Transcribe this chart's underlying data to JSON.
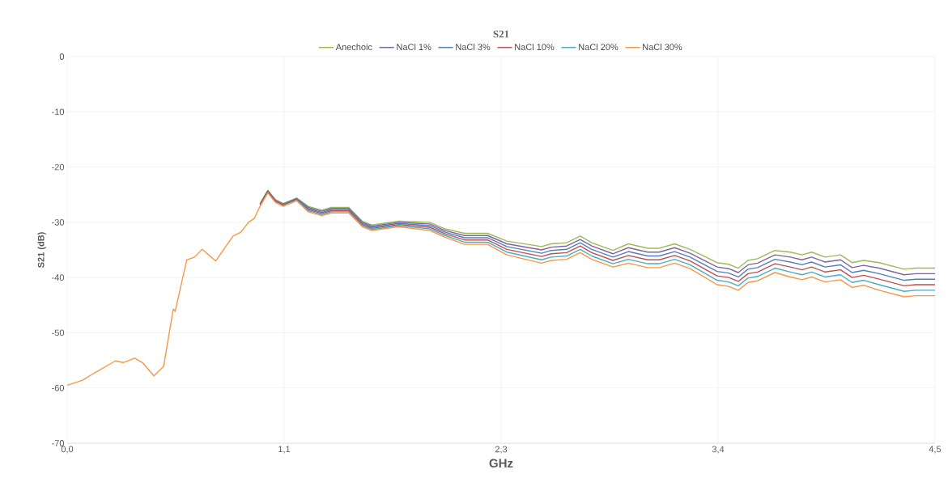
{
  "chart_data": {
    "type": "line",
    "title": "S21",
    "xlabel": "GHz",
    "ylabel": "S21 (dB)",
    "x": [
      0,
      0.08,
      0.14,
      0.25,
      0.29,
      0.35,
      0.39,
      0.45,
      0.5,
      0.55,
      0.56,
      0.62,
      0.66,
      0.7,
      0.77,
      0.86,
      0.9,
      0.94,
      0.97,
      1.0,
      1.04,
      1.08,
      1.12,
      1.19,
      1.25,
      1.32,
      1.37,
      1.46,
      1.53,
      1.58,
      1.72,
      1.88,
      1.96,
      2.06,
      2.18,
      2.28,
      2.46,
      2.51,
      2.59,
      2.66,
      2.72,
      2.83,
      2.91,
      3.01,
      3.07,
      3.15,
      3.23,
      3.37,
      3.43,
      3.48,
      3.53,
      3.58,
      3.67,
      3.75,
      3.81,
      3.86,
      3.93,
      4.01,
      4.07,
      4.13,
      4.21,
      4.34,
      4.4,
      4.45,
      4.5
    ],
    "series": [
      {
        "name": "Anechoic",
        "color": "#9bbb59",
        "values": [
          null,
          null,
          null,
          null,
          null,
          null,
          null,
          null,
          null,
          null,
          null,
          null,
          null,
          null,
          null,
          null,
          null,
          null,
          null,
          -26.6,
          -24.2,
          -25.9,
          -26.6,
          -25.6,
          -27.1,
          -27.8,
          -27.3,
          -27.3,
          -29.8,
          -30.5,
          -29.8,
          -30.0,
          -31.2,
          -32.0,
          -32.0,
          -33.4,
          -34.4,
          -33.9,
          -33.7,
          -32.5,
          -33.7,
          -35.1,
          -33.9,
          -34.7,
          -34.7,
          -33.9,
          -34.9,
          -37.3,
          -37.6,
          -38.3,
          -36.9,
          -36.6,
          -35.1,
          -35.4,
          -35.9,
          -35.4,
          -36.3,
          -35.9,
          -37.3,
          -36.9,
          -37.3,
          -38.5,
          -38.3,
          -38.3,
          -38.3
        ]
      },
      {
        "name": "NaCl 1%",
        "color": "#8064a2",
        "values": [
          null,
          null,
          null,
          null,
          null,
          null,
          null,
          null,
          null,
          null,
          null,
          null,
          null,
          null,
          null,
          null,
          null,
          null,
          null,
          -26.7,
          -24.3,
          -26.0,
          -26.7,
          -25.7,
          -27.3,
          -28.0,
          -27.5,
          -27.5,
          -30.0,
          -30.7,
          -30.0,
          -30.3,
          -31.5,
          -32.4,
          -32.4,
          -33.9,
          -35.0,
          -34.5,
          -34.3,
          -33.1,
          -34.3,
          -35.7,
          -34.6,
          -35.4,
          -35.4,
          -34.6,
          -35.6,
          -38.1,
          -38.4,
          -39.1,
          -37.7,
          -37.4,
          -35.9,
          -36.3,
          -36.8,
          -36.3,
          -37.2,
          -36.8,
          -38.2,
          -37.8,
          -38.3,
          -39.5,
          -39.3,
          -39.3,
          -39.3
        ]
      },
      {
        "name": "NaCl 3%",
        "color": "#4f81bd",
        "values": [
          null,
          null,
          null,
          null,
          null,
          null,
          null,
          null,
          null,
          null,
          null,
          null,
          null,
          null,
          null,
          null,
          null,
          null,
          null,
          -26.8,
          -24.4,
          -26.1,
          -26.8,
          -25.8,
          -27.5,
          -28.2,
          -27.7,
          -27.7,
          -30.2,
          -30.9,
          -30.2,
          -30.6,
          -31.8,
          -32.8,
          -32.8,
          -34.4,
          -35.6,
          -35.1,
          -34.9,
          -33.7,
          -34.9,
          -36.3,
          -35.3,
          -36.1,
          -36.1,
          -35.3,
          -36.3,
          -38.9,
          -39.2,
          -39.9,
          -38.5,
          -38.2,
          -36.7,
          -37.2,
          -37.7,
          -37.2,
          -38.1,
          -37.7,
          -39.1,
          -38.7,
          -39.3,
          -40.5,
          -40.3,
          -40.3,
          -40.3
        ]
      },
      {
        "name": "NaCl 10%",
        "color": "#c0504d",
        "values": [
          null,
          null,
          null,
          null,
          null,
          null,
          null,
          null,
          null,
          null,
          null,
          null,
          null,
          null,
          null,
          null,
          null,
          null,
          null,
          -26.9,
          -24.5,
          -26.2,
          -26.9,
          -25.9,
          -27.7,
          -28.4,
          -27.9,
          -27.9,
          -30.4,
          -31.1,
          -30.4,
          -30.9,
          -32.1,
          -33.2,
          -33.2,
          -34.9,
          -36.2,
          -35.7,
          -35.5,
          -34.3,
          -35.5,
          -36.9,
          -36.0,
          -36.8,
          -36.8,
          -36.0,
          -37.0,
          -39.7,
          -40.0,
          -40.7,
          -39.3,
          -39.0,
          -37.5,
          -38.1,
          -38.6,
          -38.1,
          -39.0,
          -38.6,
          -40.0,
          -39.6,
          -40.3,
          -41.5,
          -41.3,
          -41.3,
          -41.3
        ]
      },
      {
        "name": "NaCl 20%",
        "color": "#4bacc6",
        "values": [
          null,
          null,
          null,
          null,
          null,
          null,
          null,
          null,
          null,
          null,
          null,
          null,
          null,
          null,
          null,
          null,
          null,
          null,
          null,
          null,
          null,
          null,
          -27.0,
          -26.0,
          -27.9,
          -28.6,
          -28.1,
          -28.1,
          -30.6,
          -31.3,
          -30.6,
          -31.2,
          -32.4,
          -33.6,
          -33.6,
          -35.4,
          -36.8,
          -36.3,
          -36.1,
          -34.9,
          -36.1,
          -37.5,
          -36.7,
          -37.5,
          -37.5,
          -36.7,
          -37.7,
          -40.5,
          -40.8,
          -41.5,
          -40.1,
          -39.8,
          -38.3,
          -39.0,
          -39.5,
          -39.0,
          -39.9,
          -39.5,
          -40.9,
          -40.5,
          -41.3,
          -42.5,
          -42.3,
          -42.3,
          -42.3
        ]
      },
      {
        "name": "NaCl 30%",
        "color": "#f79646",
        "values": [
          -59.5,
          -58.6,
          -57.3,
          -55.1,
          -55.4,
          -54.6,
          -55.4,
          -57.8,
          -56.1,
          -45.7,
          -46.1,
          -36.8,
          -36.3,
          -34.9,
          -37.0,
          -32.5,
          -31.8,
          -30.0,
          -29.3,
          -27.1,
          -24.7,
          -26.4,
          -27.1,
          -26.1,
          -28.1,
          -28.8,
          -28.3,
          -28.3,
          -30.8,
          -31.5,
          -30.8,
          -31.5,
          -32.7,
          -34.0,
          -34.0,
          -35.9,
          -37.4,
          -36.9,
          -36.7,
          -35.5,
          -36.7,
          -38.1,
          -37.4,
          -38.2,
          -38.2,
          -37.4,
          -38.4,
          -41.3,
          -41.6,
          -42.3,
          -40.9,
          -40.6,
          -39.1,
          -39.9,
          -40.4,
          -39.9,
          -40.8,
          -40.4,
          -41.8,
          -41.4,
          -42.3,
          -43.5,
          -43.3,
          -43.3,
          -43.3
        ]
      }
    ],
    "xlim": [
      0,
      4.5
    ],
    "xticks": [
      {
        "value": 0,
        "label": "0,0"
      },
      {
        "value": 1.125,
        "label": "1,1"
      },
      {
        "value": 2.25,
        "label": "2,3"
      },
      {
        "value": 3.375,
        "label": "3,4"
      },
      {
        "value": 4.5,
        "label": "4,5"
      }
    ],
    "ylim": [
      -70,
      0
    ],
    "yticks": [
      -70,
      -60,
      -50,
      -40,
      -30,
      -20,
      -10,
      0
    ],
    "grid": true,
    "legend": "top",
    "marker": "none",
    "line_style": "solid"
  }
}
